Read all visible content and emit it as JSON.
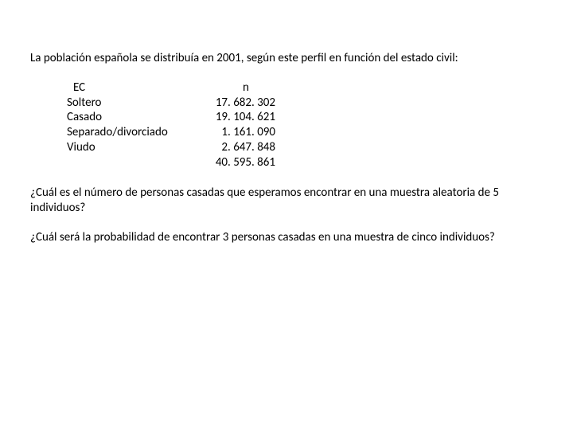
{
  "intro": "La población española  se distribuía en 2001, según este perfil en función del estado civil:",
  "table": {
    "header_label": "EC",
    "header_value": "n",
    "rows": [
      {
        "label": "Soltero",
        "value": "17. 682. 302"
      },
      {
        "label": "Casado",
        "value": "19. 104. 621"
      },
      {
        "label": "Separado/divorciado",
        "value": "1. 161. 090"
      },
      {
        "label": "Viudo",
        "value": "2. 647. 848"
      }
    ],
    "total": "40. 595. 861"
  },
  "q1": "¿Cuál es el número de personas casadas que esperamos encontrar en una muestra aleatoria de 5 individuos?",
  "q2": "¿Cuál será la probabilidad de encontrar 3 personas casadas en una muestra de cinco individuos?"
}
